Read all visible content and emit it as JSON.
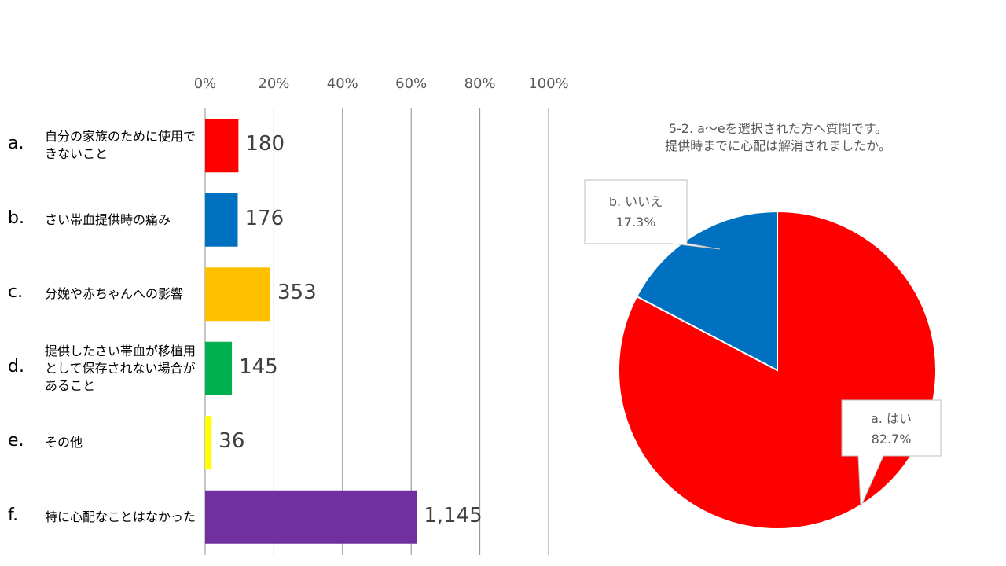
{
  "chart_data": [
    {
      "type": "bar",
      "orientation": "horizontal",
      "x_ticks": [
        "0%",
        "20%",
        "40%",
        "60%",
        "80%",
        "100%"
      ],
      "xlim": [
        0,
        100
      ],
      "grid": true,
      "categories": [
        {
          "letter": "a.",
          "label": "自分の家族のために使用できないこと",
          "value": 180,
          "value_label": "180",
          "percent": 9.7,
          "color": "#FF0000"
        },
        {
          "letter": "b.",
          "label": "さい帯血提供時の痛み",
          "value": 176,
          "value_label": "176",
          "percent": 9.5,
          "color": "#0070C0"
        },
        {
          "letter": "c.",
          "label": "分娩や赤ちゃんへの影響",
          "value": 353,
          "value_label": "353",
          "percent": 19.0,
          "color": "#FFC000"
        },
        {
          "letter": "d.",
          "label": "提供したさい帯血が移植用として保存されない場合があること",
          "value": 145,
          "value_label": "145",
          "percent": 7.8,
          "color": "#00B050"
        },
        {
          "letter": "e.",
          "label": "その他",
          "value": 36,
          "value_label": "36",
          "percent": 1.9,
          "color": "#FFFF00"
        },
        {
          "letter": "f.",
          "label": "特に心配なことはなかった",
          "value": 1145,
          "value_label": "1,145",
          "percent": 61.6,
          "color": "#7030A0"
        }
      ]
    },
    {
      "type": "pie",
      "title_lines": [
        "5-2. a〜eを選択された方へ質問です。",
        "提供時までに心配は解消されましたか。"
      ],
      "slices": [
        {
          "label": "a. はい",
          "value": 82.7,
          "value_label": "82.7%",
          "color": "#FF0000"
        },
        {
          "label": "b. いいえ",
          "value": 17.3,
          "value_label": "17.3%",
          "color": "#0070C0"
        }
      ]
    }
  ]
}
